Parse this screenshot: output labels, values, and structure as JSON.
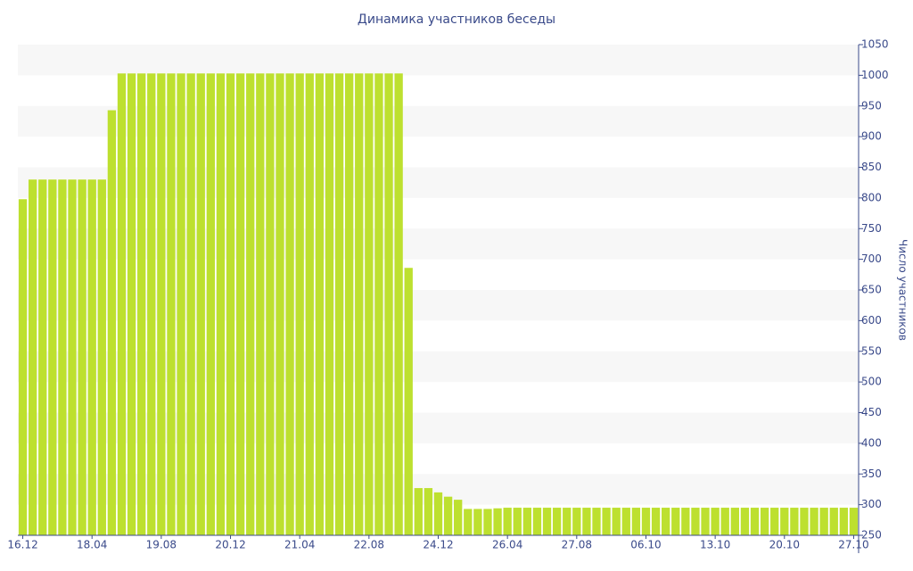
{
  "chart_data": {
    "type": "bar",
    "title": "Динамика участников беседы",
    "y_label": "Число участников",
    "categories": [
      "16.12",
      null,
      null,
      null,
      null,
      null,
      null,
      "18.04",
      null,
      null,
      null,
      null,
      null,
      null,
      "19.08",
      null,
      null,
      null,
      null,
      null,
      null,
      "20.12",
      null,
      null,
      null,
      null,
      null,
      null,
      "21.04",
      null,
      null,
      null,
      null,
      null,
      null,
      "22.08",
      null,
      null,
      null,
      null,
      null,
      null,
      "24.12",
      null,
      null,
      null,
      null,
      null,
      null,
      "26.04",
      null,
      null,
      null,
      null,
      null,
      null,
      "27.08",
      null,
      null,
      null,
      null,
      null,
      null,
      "06.10",
      null,
      null,
      null,
      null,
      null,
      null,
      "13.10",
      null,
      null,
      null,
      null,
      null,
      null,
      "20.10",
      null,
      null,
      null,
      null,
      null,
      null,
      "27.10"
    ],
    "values": [
      798,
      830,
      830,
      830,
      830,
      830,
      830,
      830,
      830,
      943,
      1003,
      1003,
      1003,
      1003,
      1003,
      1003,
      1003,
      1003,
      1003,
      1003,
      1003,
      1003,
      1003,
      1003,
      1003,
      1003,
      1003,
      1003,
      1003,
      1003,
      1003,
      1003,
      1003,
      1003,
      1003,
      1003,
      1003,
      1003,
      1003,
      686,
      327,
      327,
      320,
      313,
      308,
      293,
      293,
      293,
      294,
      295,
      295,
      295,
      295,
      295,
      295,
      295,
      295,
      295,
      295,
      295,
      295,
      295,
      295,
      295,
      295,
      295,
      295,
      295,
      295,
      295,
      295,
      295,
      295,
      295,
      295,
      295,
      295,
      295,
      295,
      295,
      295,
      295,
      295,
      295,
      295
    ],
    "color": "#bde02f",
    "ylim": [
      250,
      1050
    ],
    "yticks": [
      250,
      300,
      350,
      400,
      450,
      500,
      550,
      600,
      650,
      700,
      750,
      800,
      850,
      900,
      950,
      1000,
      1050
    ],
    "grid": true,
    "y_axis_side": "right"
  }
}
